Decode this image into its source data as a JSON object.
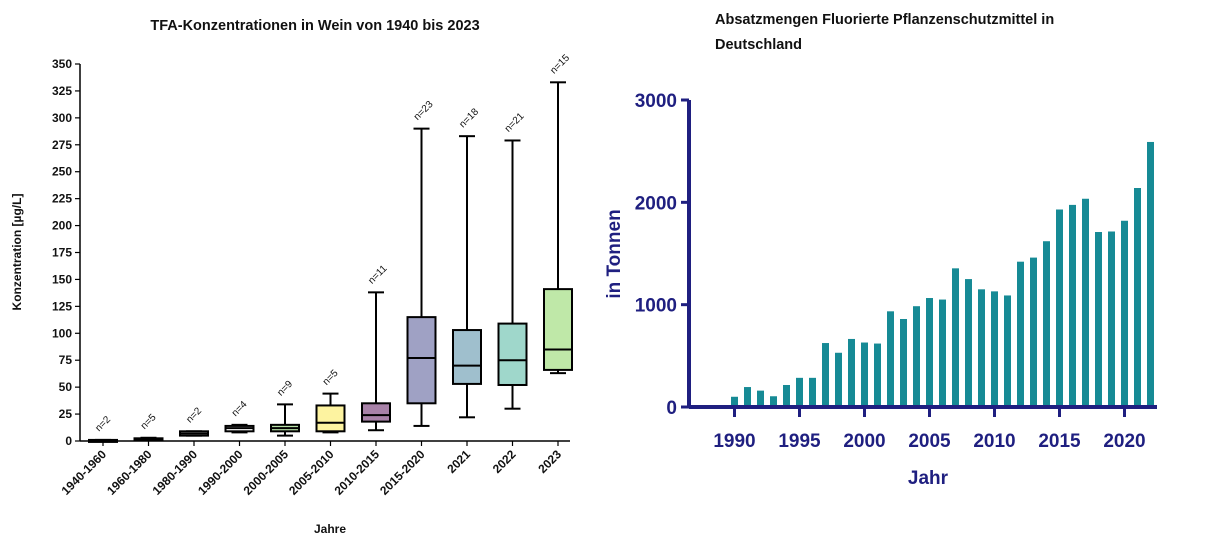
{
  "chart_data": [
    {
      "type": "box",
      "title": "TFA-Konzentrationen in Wein von 1940 bis 2023",
      "xlabel": "Jahre",
      "ylabel": "Konzentration [µg/L]",
      "ylim": [
        0,
        350
      ],
      "yticks": [
        0,
        25,
        50,
        75,
        100,
        125,
        150,
        175,
        200,
        225,
        250,
        275,
        300,
        325,
        350
      ],
      "categories": [
        "1940-1960",
        "1960-1980",
        "1980-1990",
        "1990-2000",
        "2000-2005",
        "2005-2010",
        "2010-2015",
        "2015-2020",
        "2021",
        "2022",
        "2023"
      ],
      "boxes": [
        {
          "min": 0.5,
          "q1": 0.5,
          "median": 0.7,
          "q3": 1,
          "max": 1,
          "n": "n=2",
          "color": "#ffffff"
        },
        {
          "min": 1,
          "q1": 1,
          "median": 1.5,
          "q3": 2.5,
          "max": 3,
          "n": "n=5",
          "color": "#ffffff"
        },
        {
          "min": 5,
          "q1": 5,
          "median": 7,
          "q3": 9,
          "max": 9,
          "n": "n=2",
          "color": "#ffffff"
        },
        {
          "min": 8,
          "q1": 9,
          "median": 12,
          "q3": 14,
          "max": 15,
          "n": "n=4",
          "color": "#ffffff"
        },
        {
          "min": 5,
          "q1": 9,
          "median": 12,
          "q3": 15,
          "max": 34,
          "n": "n=9",
          "color": "#b7e0a6"
        },
        {
          "min": 8,
          "q1": 9,
          "median": 17,
          "q3": 33,
          "max": 44,
          "n": "n=5",
          "color": "#fdf3a0"
        },
        {
          "min": 10,
          "q1": 18,
          "median": 24,
          "q3": 35,
          "max": 138,
          "n": "n=11",
          "color": "#a882a8"
        },
        {
          "min": 14,
          "q1": 35,
          "median": 77,
          "q3": 115,
          "max": 290,
          "n": "n=23",
          "color": "#9fa1c4"
        },
        {
          "min": 22,
          "q1": 53,
          "median": 70,
          "q3": 103,
          "max": 283,
          "n": "n=18",
          "color": "#9fbfcd"
        },
        {
          "min": 30,
          "q1": 52,
          "median": 75,
          "q3": 109,
          "max": 279,
          "n": "n=21",
          "color": "#9fd7cb"
        },
        {
          "min": 63,
          "q1": 66,
          "median": 85,
          "q3": 141,
          "max": 333,
          "n": "n=15",
          "color": "#bfe8a8"
        }
      ]
    },
    {
      "type": "bar",
      "title": "Absatzmengen Fluorierte Pflanzenschutzmittel in Deutschland",
      "xlabel": "Jahr",
      "ylabel": "in Tonnen",
      "ylim": [
        0,
        3000
      ],
      "yticks": [
        0,
        1000,
        2000,
        3000
      ],
      "xticks": [
        1990,
        1995,
        2000,
        2005,
        2010,
        2015,
        2020
      ],
      "xlim": [
        1986.5,
        2022.5
      ],
      "bar_color": "#168a95",
      "axis_color": "#1f1f80",
      "x": [
        1990,
        1991,
        1992,
        1993,
        1994,
        1995,
        1996,
        1997,
        1998,
        1999,
        2000,
        2001,
        2002,
        2003,
        2004,
        2005,
        2006,
        2007,
        2008,
        2009,
        2010,
        2011,
        2012,
        2013,
        2014,
        2015,
        2016,
        2017,
        2018,
        2019,
        2020,
        2021,
        2022
      ],
      "values": [
        100,
        195,
        160,
        105,
        215,
        285,
        285,
        625,
        530,
        665,
        630,
        620,
        935,
        860,
        985,
        1065,
        1050,
        1355,
        1250,
        1150,
        1130,
        1090,
        1420,
        1460,
        1620,
        1930,
        1975,
        2035,
        1710,
        1715,
        1820,
        2140,
        2590
      ]
    }
  ]
}
